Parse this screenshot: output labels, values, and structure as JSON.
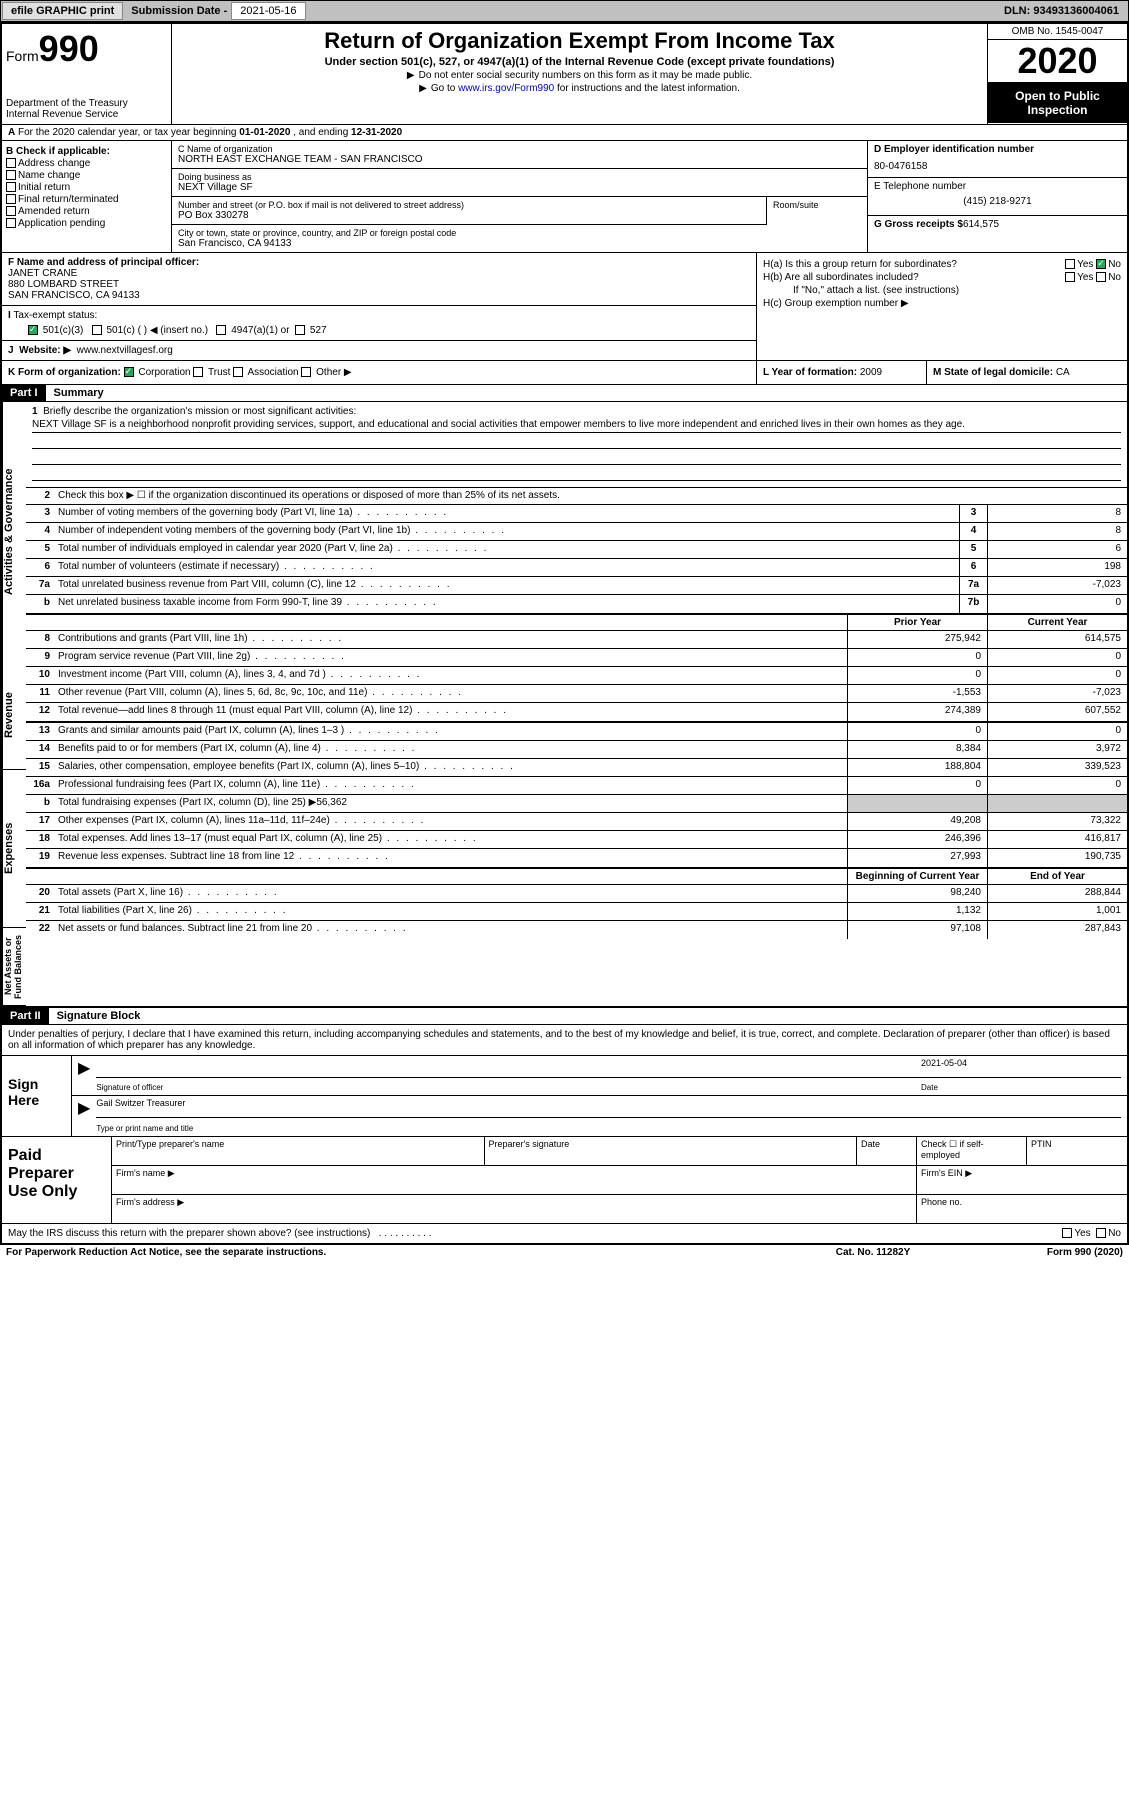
{
  "topbar": {
    "efile": "efile GRAPHIC print",
    "sub_label": "Submission Date -",
    "sub_date": "2021-05-16",
    "dln": "DLN: 93493136004061"
  },
  "header": {
    "form_word": "Form",
    "form_num": "990",
    "dept": "Department of the Treasury\nInternal Revenue Service",
    "title": "Return of Organization Exempt From Income Tax",
    "subtitle": "Under section 501(c), 527, or 4947(a)(1) of the Internal Revenue Code (except private foundations)",
    "note1": "Do not enter social security numbers on this form as it may be made public.",
    "note2_pre": "Go to ",
    "note2_link": "www.irs.gov/Form990",
    "note2_post": " for instructions and the latest information.",
    "omb": "OMB No. 1545-0047",
    "year": "2020",
    "open": "Open to Public Inspection"
  },
  "rowA": {
    "text_pre": "For the 2020 calendar year, or tax year beginning ",
    "begin": "01-01-2020",
    "mid": " , and ending ",
    "end": "12-31-2020"
  },
  "colB": {
    "title": "B Check if applicable:",
    "items": [
      "Address change",
      "Name change",
      "Initial return",
      "Final return/terminated",
      "Amended return",
      "Application pending"
    ]
  },
  "colC": {
    "name_lbl": "C Name of organization",
    "name": "NORTH EAST EXCHANGE TEAM - SAN FRANCISCO",
    "dba_lbl": "Doing business as",
    "dba": "NEXT Village SF",
    "addr_lbl": "Number and street (or P.O. box if mail is not delivered to street address)",
    "addr": "PO Box 330278",
    "room_lbl": "Room/suite",
    "city_lbl": "City or town, state or province, country, and ZIP or foreign postal code",
    "city": "San Francisco, CA  94133"
  },
  "colD": {
    "ein_lbl": "D Employer identification number",
    "ein": "80-0476158",
    "tel_lbl": "E Telephone number",
    "tel": "(415) 218-9271",
    "gross_lbl": "G Gross receipts $",
    "gross": "614,575"
  },
  "F": {
    "lbl": "F Name and address of principal officer:",
    "name": "JANET CRANE",
    "street": "880 LOMBARD STREET",
    "city": "SAN FRANCISCO, CA  94133"
  },
  "I": {
    "lbl": "Tax-exempt status:",
    "c3": "501(c)(3)",
    "c": "501(c) (  ) ◀ (insert no.)",
    "a1": "4947(a)(1) or",
    "s527": "527"
  },
  "J": {
    "lbl": "Website: ▶",
    "url": "www.nextvillagesf.org"
  },
  "H": {
    "a": "H(a)  Is this a group return for subordinates?",
    "b": "H(b)  Are all subordinates included?",
    "bnote": "If \"No,\" attach a list. (see instructions)",
    "c": "H(c)  Group exemption number ▶"
  },
  "K": {
    "lbl": "K Form of organization:",
    "opts": [
      "Corporation",
      "Trust",
      "Association",
      "Other ▶"
    ]
  },
  "L": {
    "lbl": "L Year of formation:",
    "val": "2009"
  },
  "M": {
    "lbl": "M State of legal domicile:",
    "val": "CA"
  },
  "part1": {
    "header": "Part I",
    "title": "Summary",
    "mission_lbl": "Briefly describe the organization's mission or most significant activities:",
    "mission": "NEXT Village SF is a neighborhood nonprofit providing services, support, and educational and social activities that empower members to live more independent and enriched lives in their own homes as they age.",
    "line2": "Check this box ▶ ☐  if the organization discontinued its operations or disposed of more than 25% of its net assets.",
    "vtabs": [
      "Activities & Governance",
      "Revenue",
      "Expenses",
      "Net Assets or Fund Balances"
    ],
    "col_prior": "Prior Year",
    "col_current": "Current Year",
    "col_begin": "Beginning of Current Year",
    "col_end": "End of Year",
    "lines_gov": [
      {
        "n": "3",
        "d": "Number of voting members of the governing body (Part VI, line 1a)",
        "b": "3",
        "v": "8"
      },
      {
        "n": "4",
        "d": "Number of independent voting members of the governing body (Part VI, line 1b)",
        "b": "4",
        "v": "8"
      },
      {
        "n": "5",
        "d": "Total number of individuals employed in calendar year 2020 (Part V, line 2a)",
        "b": "5",
        "v": "6"
      },
      {
        "n": "6",
        "d": "Total number of volunteers (estimate if necessary)",
        "b": "6",
        "v": "198"
      },
      {
        "n": "7a",
        "d": "Total unrelated business revenue from Part VIII, column (C), line 12",
        "b": "7a",
        "v": "-7,023"
      },
      {
        "n": "b",
        "d": "Net unrelated business taxable income from Form 990-T, line 39",
        "b": "7b",
        "v": "0"
      }
    ],
    "lines_rev": [
      {
        "n": "8",
        "d": "Contributions and grants (Part VIII, line 1h)",
        "p": "275,942",
        "c": "614,575"
      },
      {
        "n": "9",
        "d": "Program service revenue (Part VIII, line 2g)",
        "p": "0",
        "c": "0"
      },
      {
        "n": "10",
        "d": "Investment income (Part VIII, column (A), lines 3, 4, and 7d )",
        "p": "0",
        "c": "0"
      },
      {
        "n": "11",
        "d": "Other revenue (Part VIII, column (A), lines 5, 6d, 8c, 9c, 10c, and 11e)",
        "p": "-1,553",
        "c": "-7,023"
      },
      {
        "n": "12",
        "d": "Total revenue—add lines 8 through 11 (must equal Part VIII, column (A), line 12)",
        "p": "274,389",
        "c": "607,552"
      }
    ],
    "lines_exp": [
      {
        "n": "13",
        "d": "Grants and similar amounts paid (Part IX, column (A), lines 1–3 )",
        "p": "0",
        "c": "0"
      },
      {
        "n": "14",
        "d": "Benefits paid to or for members (Part IX, column (A), line 4)",
        "p": "8,384",
        "c": "3,972"
      },
      {
        "n": "15",
        "d": "Salaries, other compensation, employee benefits (Part IX, column (A), lines 5–10)",
        "p": "188,804",
        "c": "339,523"
      },
      {
        "n": "16a",
        "d": "Professional fundraising fees (Part IX, column (A), line 11e)",
        "p": "0",
        "c": "0"
      },
      {
        "n": "b",
        "d": "Total fundraising expenses (Part IX, column (D), line 25) ▶56,362",
        "grey": true
      },
      {
        "n": "17",
        "d": "Other expenses (Part IX, column (A), lines 11a–11d, 11f–24e)",
        "p": "49,208",
        "c": "73,322"
      },
      {
        "n": "18",
        "d": "Total expenses. Add lines 13–17 (must equal Part IX, column (A), line 25)",
        "p": "246,396",
        "c": "416,817"
      },
      {
        "n": "19",
        "d": "Revenue less expenses. Subtract line 18 from line 12",
        "p": "27,993",
        "c": "190,735"
      }
    ],
    "lines_net": [
      {
        "n": "20",
        "d": "Total assets (Part X, line 16)",
        "p": "98,240",
        "c": "288,844"
      },
      {
        "n": "21",
        "d": "Total liabilities (Part X, line 26)",
        "p": "1,132",
        "c": "1,001"
      },
      {
        "n": "22",
        "d": "Net assets or fund balances. Subtract line 21 from line 20",
        "p": "97,108",
        "c": "287,843"
      }
    ]
  },
  "part2": {
    "header": "Part II",
    "title": "Signature Block",
    "decl": "Under penalties of perjury, I declare that I have examined this return, including accompanying schedules and statements, and to the best of my knowledge and belief, it is true, correct, and complete. Declaration of preparer (other than officer) is based on all information of which preparer has any knowledge.",
    "sign_here": "Sign Here",
    "sig_officer": "Signature of officer",
    "sig_date_lbl": "Date",
    "sig_date": "2021-05-04",
    "sig_name": "Gail Switzer  Treasurer",
    "sig_name_lbl": "Type or print name and title",
    "paid": "Paid Preparer Use Only",
    "prep_name": "Print/Type preparer's name",
    "prep_sig": "Preparer's signature",
    "prep_date": "Date",
    "prep_check": "Check ☐ if self-employed",
    "ptin": "PTIN",
    "firm_name": "Firm's name   ▶",
    "firm_ein": "Firm's EIN ▶",
    "firm_addr": "Firm's address ▶",
    "phone": "Phone no.",
    "discuss": "May the IRS discuss this return with the preparer shown above? (see instructions)"
  },
  "footer": {
    "pra": "For Paperwork Reduction Act Notice, see the separate instructions.",
    "cat": "Cat. No. 11282Y",
    "form": "Form 990 (2020)"
  }
}
